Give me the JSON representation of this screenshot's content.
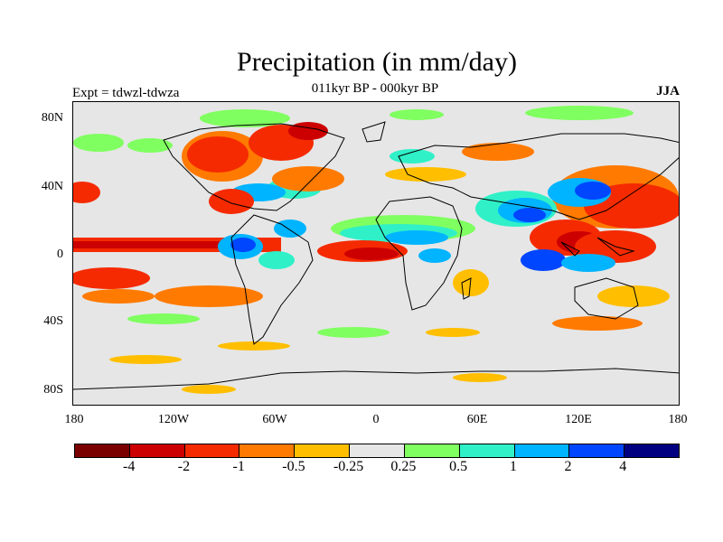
{
  "title": "Precipitation (in mm/day)",
  "subtitle": "011kyr BP - 000kyr BP",
  "left_label": "Expt = tdwzl-tdwza",
  "right_label": "JJA",
  "lat_ticks": [
    "80N",
    "40N",
    "0",
    "40S",
    "80S"
  ],
  "lon_ticks": [
    "180",
    "120W",
    "60W",
    "0",
    "60E",
    "120E",
    "180"
  ],
  "colorbar": {
    "colors": [
      "#7a0000",
      "#cc0000",
      "#f52a00",
      "#ff7a00",
      "#ffbf00",
      "#e6e6e6",
      "#80ff60",
      "#30f0c8",
      "#00b4ff",
      "#0046ff",
      "#000080"
    ],
    "labels": [
      "-4",
      "-2",
      "-1",
      "-0.5",
      "-0.25",
      "0.25",
      "0.5",
      "1",
      "2",
      "4"
    ]
  }
}
